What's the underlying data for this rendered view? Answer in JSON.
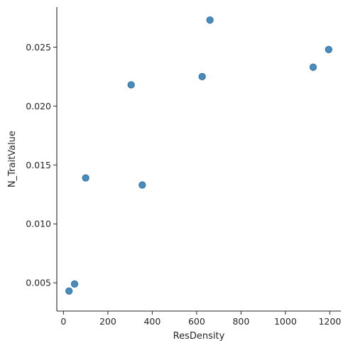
{
  "chart_data": {
    "type": "scatter",
    "title": "",
    "xlabel": "ResDensity",
    "ylabel": "N_TraitValue",
    "xlim": [
      -30,
      1250
    ],
    "ylim": [
      0.0026,
      0.0284
    ],
    "xticks": [
      0,
      200,
      400,
      600,
      800,
      1000,
      1200
    ],
    "yticks": [
      0.005,
      0.01,
      0.015,
      0.02,
      0.025
    ],
    "xtick_labels": [
      "0",
      "200",
      "400",
      "600",
      "800",
      "1000",
      "1200"
    ],
    "ytick_labels": [
      "0.005",
      "0.010",
      "0.015",
      "0.020",
      "0.025"
    ],
    "grid": false,
    "point_color": "#3a82b8",
    "points": [
      {
        "x": 25,
        "y": 0.0043
      },
      {
        "x": 50,
        "y": 0.0049
      },
      {
        "x": 100,
        "y": 0.0139
      },
      {
        "x": 305,
        "y": 0.0218
      },
      {
        "x": 355,
        "y": 0.0133
      },
      {
        "x": 625,
        "y": 0.0225
      },
      {
        "x": 660,
        "y": 0.0273
      },
      {
        "x": 1125,
        "y": 0.0233
      },
      {
        "x": 1195,
        "y": 0.0248
      }
    ]
  }
}
